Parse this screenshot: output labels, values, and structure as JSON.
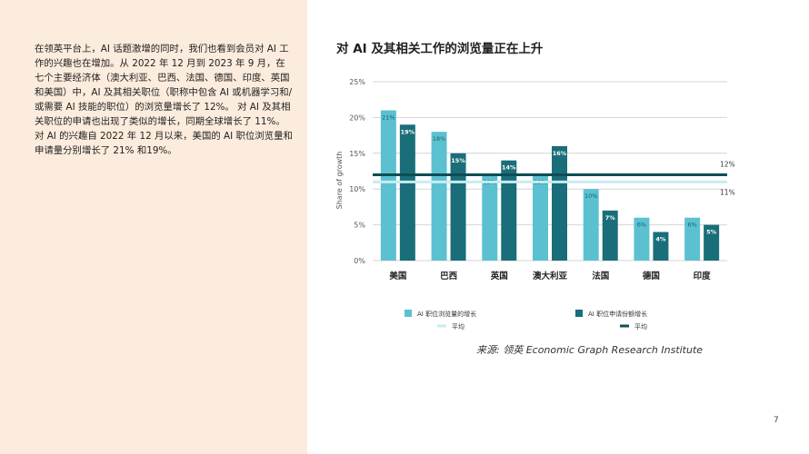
{
  "text": {
    "paragraph": "在领英平台上，AI 话题激增的同时，我们也看到会员对 AI 工作的兴趣也在增加。从 2022 年 12 月到 2023 年 9 月，在七个主要经济体（澳大利亚、巴西、法国、德国、印度、英国和美国）中，AI 及其相关职位（职称中包含 AI 或机器学习和/或需要 AI 技能的职位）的浏览量增长了 12%。 对 AI 及其相关职位的申请也出现了类似的增长，同期全球增长了 11%。对 AI 的兴趣自 2022 年 12 月以来，美国的 AI 职位浏览量和申请量分别增长了 21% 和19%。",
    "source": "来源: 领英 Economic Graph Research Institute",
    "page_number": "7"
  },
  "colors": {
    "panel_bg": "#fcecdd",
    "views_bar": "#5bc1d0",
    "apps_bar": "#1a6e79",
    "views_avg": "#c8ecf1",
    "apps_avg": "#0e4e55"
  },
  "chart_data": {
    "type": "bar",
    "title": "对 AI 及其相关工作的浏览量正在上升",
    "ylabel": "Share of growth",
    "ylim": [
      0,
      25
    ],
    "yticks": [
      0,
      5,
      10,
      15,
      20,
      25
    ],
    "ytick_labels": [
      "0%",
      "5%",
      "10%",
      "15%",
      "20%",
      "25%"
    ],
    "grid": true,
    "legend_position": "bottom",
    "categories": [
      "美国",
      "巴西",
      "英国",
      "澳大利亚",
      "法国",
      "德国",
      "印度"
    ],
    "series": [
      {
        "name": "AI 职位浏览量的增长",
        "values": [
          21,
          18,
          12,
          12,
          10,
          6,
          6
        ],
        "labels": [
          "21%",
          "18%",
          "12%",
          "12%",
          "10%",
          "6%",
          "6%"
        ]
      },
      {
        "name": "AI 职位申请份额增长",
        "values": [
          19,
          15,
          14,
          16,
          7,
          4,
          5
        ],
        "labels": [
          "19%",
          "15%",
          "14%",
          "16%",
          "7%",
          "4%",
          "5%"
        ]
      }
    ],
    "averages": [
      {
        "name": "平均",
        "value": 11,
        "label": "11%"
      },
      {
        "name": "平均",
        "value": 12,
        "label": "12%"
      }
    ]
  }
}
